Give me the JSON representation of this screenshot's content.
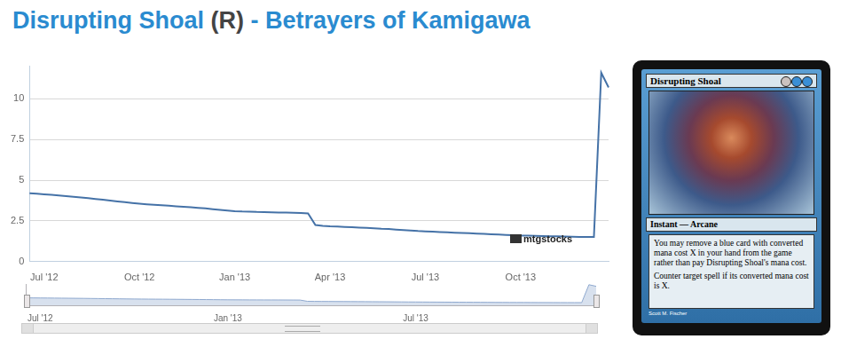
{
  "chart_data": [
    {
      "type": "line",
      "title": "Disrupting Shoal (R) - Betrayers of Kamigawa",
      "categories": [
        null,
        null,
        "Jul '12",
        null,
        null,
        null,
        null,
        null,
        null,
        null,
        null,
        null,
        null,
        null,
        null,
        "Oct '12",
        null,
        null,
        null,
        null,
        null,
        null,
        null,
        null,
        null,
        null,
        null,
        null,
        "Jan '13",
        null,
        null,
        null,
        null,
        null,
        null,
        null,
        null,
        null,
        null,
        null,
        null,
        "Apr '13",
        null,
        null,
        null,
        null,
        null,
        null,
        null,
        null,
        null,
        null,
        null,
        null,
        "Jul '13",
        null,
        null,
        null,
        null,
        null,
        null,
        null,
        null,
        null,
        null,
        null,
        null,
        "Oct '13",
        null,
        null,
        null,
        null,
        null,
        null,
        null,
        null,
        null,
        null,
        null,
        null
      ],
      "values": [
        4.2,
        4.17,
        4.13,
        4.1,
        4.06,
        4.02,
        3.98,
        3.94,
        3.9,
        3.85,
        3.8,
        3.75,
        3.7,
        3.65,
        3.6,
        3.56,
        3.52,
        3.49,
        3.46,
        3.43,
        3.4,
        3.37,
        3.34,
        3.3,
        3.27,
        3.22,
        3.18,
        3.14,
        3.1,
        3.08,
        3.07,
        3.05,
        3.04,
        3.03,
        3.02,
        3.01,
        3.0,
        2.98,
        2.96,
        2.25,
        2.2,
        2.17,
        2.15,
        2.13,
        2.11,
        2.09,
        2.07,
        2.05,
        2.02,
        2.0,
        1.97,
        1.94,
        1.91,
        1.88,
        1.86,
        1.84,
        1.82,
        1.8,
        1.78,
        1.76,
        1.74,
        1.72,
        1.7,
        1.68,
        1.66,
        1.64,
        1.62,
        1.6,
        1.59,
        1.58,
        1.57,
        1.56,
        1.55,
        1.54,
        1.53,
        1.52,
        1.51,
        1.52,
        11.6,
        10.7
      ],
      "color": "#4572a7",
      "ylim": [
        0,
        12
      ],
      "yticks": [
        0,
        2.5,
        5,
        7.5,
        10
      ],
      "grid": true,
      "annotations": [
        "mtgstocks"
      ]
    },
    {
      "type": "area",
      "categories": [
        null,
        null,
        "Jul '12",
        null,
        null,
        null,
        null,
        null,
        null,
        null,
        null,
        null,
        null,
        null,
        null,
        null,
        null,
        null,
        null,
        null,
        null,
        null,
        null,
        null,
        null,
        null,
        null,
        null,
        "Jan '13",
        null,
        null,
        null,
        null,
        null,
        null,
        null,
        null,
        null,
        null,
        null,
        null,
        null,
        null,
        null,
        null,
        null,
        null,
        null,
        null,
        null,
        null,
        null,
        null,
        null,
        "Jul '13",
        null,
        null,
        null,
        null,
        null,
        null,
        null,
        null,
        null,
        null,
        null,
        null,
        null,
        null,
        null,
        null,
        null,
        null,
        null,
        null,
        null,
        null,
        null,
        null,
        null
      ],
      "values": [
        4.2,
        4.17,
        4.13,
        4.1,
        4.06,
        4.02,
        3.98,
        3.94,
        3.9,
        3.85,
        3.8,
        3.75,
        3.7,
        3.65,
        3.6,
        3.56,
        3.52,
        3.49,
        3.46,
        3.43,
        3.4,
        3.37,
        3.34,
        3.3,
        3.27,
        3.22,
        3.18,
        3.14,
        3.1,
        3.08,
        3.07,
        3.05,
        3.04,
        3.03,
        3.02,
        3.01,
        3.0,
        2.98,
        2.96,
        2.25,
        2.2,
        2.17,
        2.15,
        2.13,
        2.11,
        2.09,
        2.07,
        2.05,
        2.02,
        2.0,
        1.97,
        1.94,
        1.91,
        1.88,
        1.86,
        1.84,
        1.82,
        1.8,
        1.78,
        1.76,
        1.74,
        1.72,
        1.7,
        1.68,
        1.66,
        1.64,
        1.62,
        1.6,
        1.59,
        1.58,
        1.57,
        1.56,
        1.55,
        1.54,
        1.53,
        1.52,
        1.51,
        1.52,
        11.6,
        10.7
      ],
      "color": "#8fa9cf",
      "ylim": [
        0,
        12
      ],
      "grid": false,
      "tick_labels": "x"
    }
  ],
  "card": {
    "name": "Disrupting Shoal",
    "type_line": "Instant — Arcane",
    "rules_text": [
      "You may remove a blue card with converted mana cost X in your hand from the game rather than pay Disrupting Shoal's mana cost.",
      "Counter target spell if its converted mana cost is X."
    ],
    "artist": "Scott M. Fischer"
  }
}
